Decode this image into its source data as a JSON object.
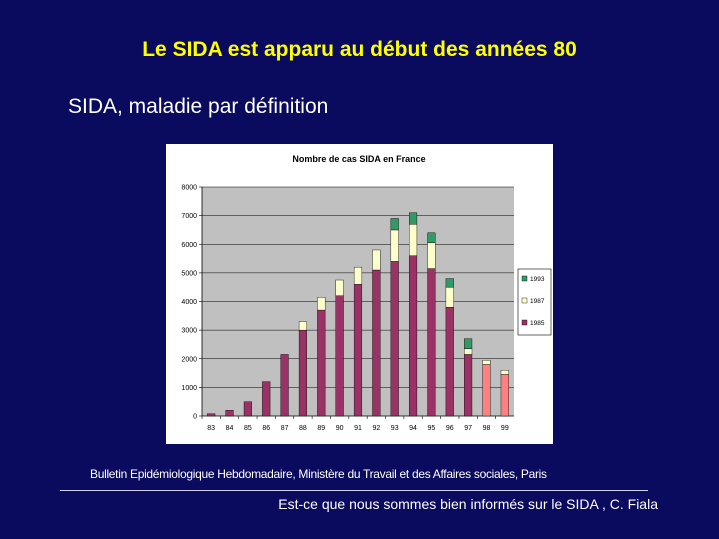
{
  "slide": {
    "title": "Le SIDA est apparu au début des années 80",
    "subtitle": "SIDA, maladie par définition",
    "source": "Bulletin Epidémiologique Hebdomadaire, Ministère du Travail et des Affaires sociales, Paris",
    "footer": "Est-ce que nous sommes bien informés sur le SIDA , C. Fiala"
  },
  "colors": {
    "background": "#0a0a5e",
    "title": "#ffff00",
    "series_1985": "#993366",
    "series_1987": "#ffffcc",
    "series_1993": "#339966",
    "estimated": "#ff8080"
  },
  "chart_data": {
    "type": "bar",
    "stacked": true,
    "title": "Nombre de cas SIDA en France",
    "xlabel": "",
    "ylabel": "",
    "ylim": [
      0,
      8000
    ],
    "yticks": [
      0,
      1000,
      2000,
      3000,
      4000,
      5000,
      6000,
      7000,
      8000
    ],
    "grid": true,
    "legend_position": "right",
    "categories": [
      "83",
      "84",
      "85",
      "86",
      "87",
      "88",
      "89",
      "90",
      "91",
      "92",
      "93",
      "94",
      "95",
      "96",
      "97",
      "98",
      "99"
    ],
    "series": [
      {
        "name": "1985",
        "values": [
          80,
          200,
          500,
          1200,
          2150,
          3000,
          3700,
          4200,
          4600,
          5100,
          5400,
          5600,
          5150,
          3800,
          2150,
          1800,
          1450
        ]
      },
      {
        "name": "1987",
        "values": [
          0,
          0,
          0,
          0,
          0,
          300,
          450,
          550,
          600,
          700,
          1100,
          1100,
          900,
          700,
          200,
          150,
          150
        ]
      },
      {
        "name": "1993",
        "values": [
          0,
          0,
          0,
          0,
          0,
          0,
          0,
          0,
          0,
          0,
          400,
          400,
          350,
          300,
          350,
          0,
          0
        ]
      }
    ],
    "estimated_categories": [
      "98",
      "99"
    ]
  }
}
